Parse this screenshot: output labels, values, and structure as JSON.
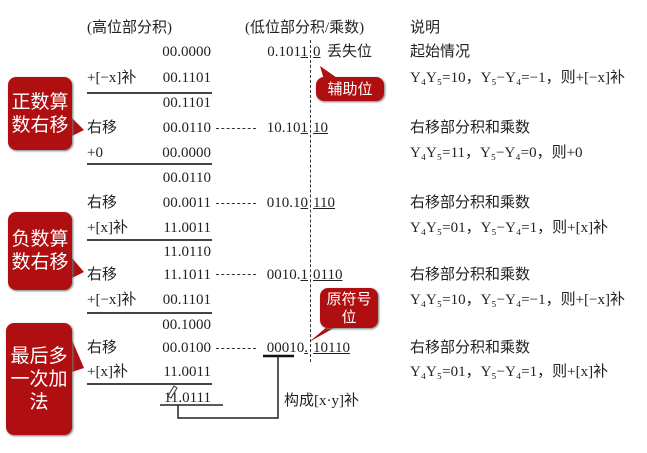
{
  "headers": {
    "high": "(高位部分积)",
    "low": "(低位部分积/乘数)",
    "note": "说明"
  },
  "rows": [
    {
      "op": "",
      "high": "00.0000",
      "low_a": "0.101",
      "low_u": "1",
      "low_b": "0",
      "extra": "丢失位",
      "note": "起始情况"
    },
    {
      "op": "+[−x]补",
      "high": "00.1101",
      "note": "Y₄Y₅=10，Y₅−Y₄=−1，则+[−x]补"
    },
    {
      "op": "",
      "high": "00.1101"
    },
    {
      "op": "右移",
      "high": "00.0110",
      "low_a": "10.10",
      "low_u": "1",
      "low_b": "10",
      "note": "右移部分积和乘数"
    },
    {
      "op": "+0",
      "high": "00.0000",
      "note": "Y₄Y₅=11，Y₅−Y₄=0，则+0"
    },
    {
      "op": "",
      "high": "00.0110"
    },
    {
      "op": "右移",
      "high": "00.0011",
      "low_a": "010.1",
      "low_u": "0",
      "low_b": "110",
      "note": "右移部分积和乘数"
    },
    {
      "op": "+[x]补",
      "high": "11.0011",
      "note": "Y₄Y₅=01，Y₅−Y₄=1，则+[x]补"
    },
    {
      "op": "",
      "high": "11.0110"
    },
    {
      "op": "右移",
      "high": "11.1011",
      "low_a": "0010.",
      "low_u": "1",
      "low_b": "0110",
      "note": "右移部分积和乘数"
    },
    {
      "op": "+[−x]补",
      "high": "00.1101",
      "note": "Y₄Y₅=10，Y₅−Y₄=−1，则+[−x]补"
    },
    {
      "op": "",
      "high": "00.1000"
    },
    {
      "op": "右移",
      "high": "00.0100",
      "low_a": "00010",
      "low_u": ".",
      "low_b": "10110",
      "note": "右移部分积和乘数"
    },
    {
      "op": "+[x]补",
      "high": "11.0011",
      "note": "Y₄Y₅=01，Y₅−Y₄=1，则+[x]补"
    },
    {
      "op": "",
      "high": "11.0111"
    }
  ],
  "result_label": "构成[x·y]补",
  "callouts": {
    "positive": "正数算数右移",
    "negative": "负数算数右移",
    "last": "最后多一次加法",
    "aux": "辅助位",
    "sign": "原符号位"
  },
  "colors": {
    "callout": "#b00f12"
  }
}
